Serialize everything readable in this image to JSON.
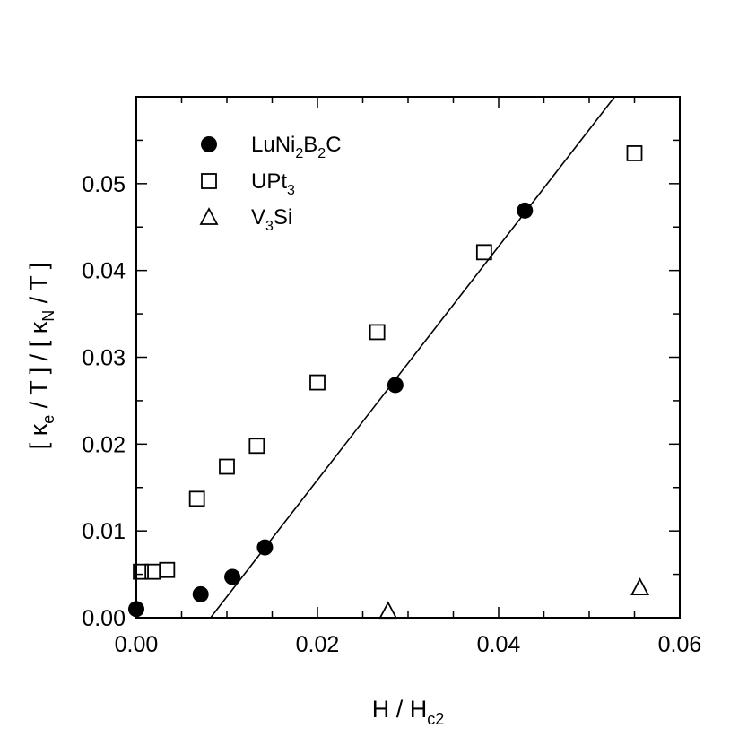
{
  "chart_data": {
    "type": "scatter",
    "xlabel": {
      "main": "H / H",
      "sub": "c2"
    },
    "ylabel": {
      "p1": "[ κ",
      "s1": "e",
      "p2": " / T ] / [ κ",
      "s2": "N",
      "p3": " / T ]"
    },
    "xlim": [
      0,
      0.06
    ],
    "ylim": [
      0,
      0.06
    ],
    "x_ticks": [
      "0.00",
      "0.02",
      "0.04",
      "0.06"
    ],
    "x_tick_values": [
      0,
      0.02,
      0.04,
      0.06
    ],
    "y_ticks": [
      "0.00",
      "0.01",
      "0.02",
      "0.03",
      "0.04",
      "0.05"
    ],
    "y_tick_values": [
      0,
      0.01,
      0.02,
      0.03,
      0.04,
      0.05
    ],
    "legend_position": "top-left",
    "series": [
      {
        "name": {
          "t1": "LuNi",
          "s1": "2",
          "t2": "B",
          "s2": "2",
          "t3": "C"
        },
        "marker": "filled-circle",
        "points": [
          [
            0.0,
            0.001
          ],
          [
            0.0071,
            0.0027
          ],
          [
            0.0106,
            0.0047
          ],
          [
            0.0142,
            0.0081
          ],
          [
            0.0286,
            0.0268
          ],
          [
            0.0429,
            0.0469
          ]
        ]
      },
      {
        "name": {
          "t1": "UPt",
          "s1": "3"
        },
        "marker": "open-square",
        "points": [
          [
            0.0005,
            0.0053
          ],
          [
            0.0018,
            0.0053
          ],
          [
            0.0034,
            0.0055
          ],
          [
            0.0067,
            0.0137
          ],
          [
            0.01,
            0.0174
          ],
          [
            0.0133,
            0.0198
          ],
          [
            0.02,
            0.0271
          ],
          [
            0.0266,
            0.0329
          ],
          [
            0.0384,
            0.0421
          ],
          [
            0.055,
            0.0535
          ]
        ]
      },
      {
        "name": {
          "t1": "V",
          "s1": "3",
          "t2": "Si"
        },
        "marker": "open-triangle",
        "points": [
          [
            0.0278,
            0.0008
          ],
          [
            0.0556,
            0.0035
          ]
        ]
      }
    ],
    "fit_line": {
      "x_range": [
        0.0082,
        0.0528
      ],
      "slope": 1.345,
      "x_intercept": 0.0082
    }
  }
}
